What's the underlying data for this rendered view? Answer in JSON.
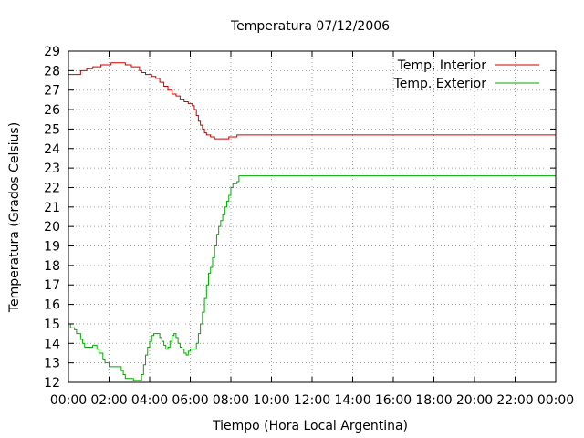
{
  "chart_data": {
    "type": "line",
    "title": "Temperatura 07/12/2006",
    "xlabel": "Tiempo (Hora Local Argentina)",
    "ylabel": "Temperatura (Grados Celsius)",
    "xlim": [
      0,
      24
    ],
    "ylim": [
      12,
      29
    ],
    "x_unit": "hours",
    "x_tick_values": [
      0,
      2,
      4,
      6,
      8,
      10,
      12,
      14,
      16,
      18,
      20,
      22,
      24
    ],
    "x_tick_labels": [
      "00:00",
      "02:00",
      "04:00",
      "06:00",
      "08:00",
      "10:00",
      "12:00",
      "14:00",
      "16:00",
      "18:00",
      "20:00",
      "22:00",
      "00:00"
    ],
    "y_ticks": [
      12,
      13,
      14,
      15,
      16,
      17,
      18,
      19,
      20,
      21,
      22,
      23,
      24,
      25,
      26,
      27,
      28,
      29
    ],
    "grid": true,
    "step": true,
    "legend_position": "top-right",
    "series": [
      {
        "name": "Temp. Interior",
        "color": "#cc0000",
        "points": [
          [
            0,
            27.8
          ],
          [
            0.5,
            27.8
          ],
          [
            0.6,
            28.0
          ],
          [
            0.8,
            28.0
          ],
          [
            0.9,
            28.1
          ],
          [
            1.1,
            28.1
          ],
          [
            1.2,
            28.2
          ],
          [
            1.5,
            28.2
          ],
          [
            1.6,
            28.3
          ],
          [
            2.0,
            28.3
          ],
          [
            2.1,
            28.4
          ],
          [
            2.7,
            28.4
          ],
          [
            2.8,
            28.3
          ],
          [
            3.0,
            28.3
          ],
          [
            3.1,
            28.2
          ],
          [
            3.4,
            28.2
          ],
          [
            3.5,
            28.0
          ],
          [
            3.6,
            27.9
          ],
          [
            3.8,
            27.8
          ],
          [
            4.1,
            27.7
          ],
          [
            4.3,
            27.6
          ],
          [
            4.5,
            27.4
          ],
          [
            4.7,
            27.2
          ],
          [
            4.9,
            27.0
          ],
          [
            5.1,
            26.8
          ],
          [
            5.3,
            26.7
          ],
          [
            5.5,
            26.5
          ],
          [
            5.7,
            26.4
          ],
          [
            5.9,
            26.3
          ],
          [
            6.1,
            26.2
          ],
          [
            6.2,
            26.0
          ],
          [
            6.3,
            25.7
          ],
          [
            6.4,
            25.4
          ],
          [
            6.5,
            25.2
          ],
          [
            6.6,
            25.0
          ],
          [
            6.7,
            24.8
          ],
          [
            6.8,
            24.7
          ],
          [
            7.0,
            24.6
          ],
          [
            7.2,
            24.5
          ],
          [
            7.8,
            24.5
          ],
          [
            7.9,
            24.6
          ],
          [
            8.2,
            24.6
          ],
          [
            8.3,
            24.7
          ],
          [
            24,
            24.7
          ]
        ]
      },
      {
        "name": "Temp. Exterior",
        "color": "#00aa00",
        "points": [
          [
            0,
            15.0
          ],
          [
            0.1,
            14.8
          ],
          [
            0.3,
            14.7
          ],
          [
            0.4,
            14.5
          ],
          [
            0.6,
            14.2
          ],
          [
            0.7,
            14.0
          ],
          [
            0.8,
            13.8
          ],
          [
            1.1,
            13.8
          ],
          [
            1.2,
            13.9
          ],
          [
            1.4,
            13.7
          ],
          [
            1.5,
            13.5
          ],
          [
            1.7,
            13.2
          ],
          [
            1.8,
            13.0
          ],
          [
            2.0,
            12.8
          ],
          [
            2.5,
            12.8
          ],
          [
            2.6,
            12.6
          ],
          [
            2.7,
            12.4
          ],
          [
            2.8,
            12.2
          ],
          [
            3.1,
            12.2
          ],
          [
            3.2,
            12.1
          ],
          [
            3.5,
            12.1
          ],
          [
            3.6,
            12.4
          ],
          [
            3.7,
            12.9
          ],
          [
            3.8,
            13.4
          ],
          [
            3.9,
            13.8
          ],
          [
            4.0,
            14.1
          ],
          [
            4.1,
            14.4
          ],
          [
            4.2,
            14.5
          ],
          [
            4.4,
            14.5
          ],
          [
            4.5,
            14.3
          ],
          [
            4.6,
            14.1
          ],
          [
            4.7,
            13.9
          ],
          [
            4.8,
            13.7
          ],
          [
            4.9,
            13.8
          ],
          [
            5.0,
            14.1
          ],
          [
            5.1,
            14.4
          ],
          [
            5.2,
            14.5
          ],
          [
            5.3,
            14.3
          ],
          [
            5.4,
            14.0
          ],
          [
            5.5,
            13.8
          ],
          [
            5.6,
            13.7
          ],
          [
            5.7,
            13.5
          ],
          [
            5.8,
            13.4
          ],
          [
            5.9,
            13.6
          ],
          [
            6.0,
            13.7
          ],
          [
            6.2,
            13.7
          ],
          [
            6.3,
            14.0
          ],
          [
            6.4,
            14.5
          ],
          [
            6.5,
            15.0
          ],
          [
            6.6,
            15.6
          ],
          [
            6.7,
            16.3
          ],
          [
            6.8,
            17.0
          ],
          [
            6.9,
            17.6
          ],
          [
            7.0,
            17.9
          ],
          [
            7.1,
            18.4
          ],
          [
            7.2,
            19.0
          ],
          [
            7.3,
            19.6
          ],
          [
            7.4,
            20.0
          ],
          [
            7.5,
            20.3
          ],
          [
            7.6,
            20.6
          ],
          [
            7.7,
            21.0
          ],
          [
            7.8,
            21.3
          ],
          [
            7.9,
            21.6
          ],
          [
            8.0,
            22.0
          ],
          [
            8.1,
            22.2
          ],
          [
            8.3,
            22.3
          ],
          [
            8.4,
            22.6
          ],
          [
            24,
            22.6
          ]
        ]
      }
    ]
  }
}
